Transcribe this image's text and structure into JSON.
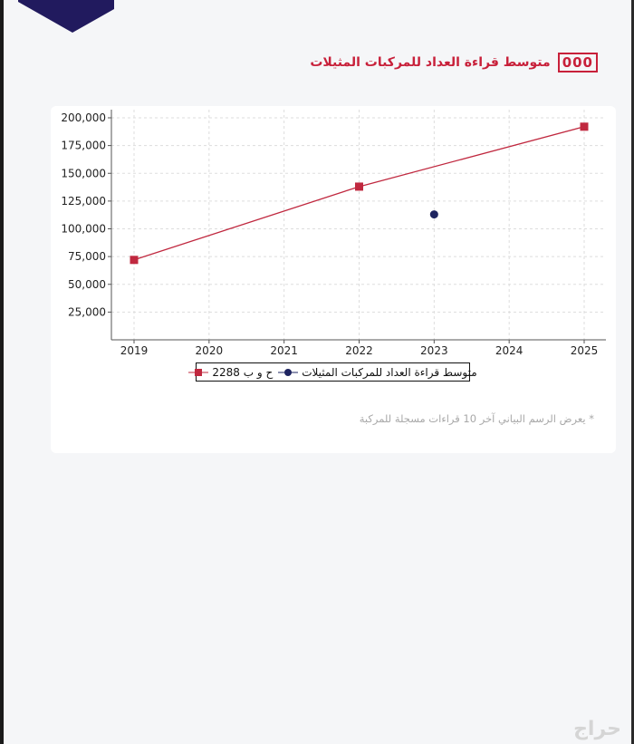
{
  "header": {
    "title": "متوسط قراءة العداد للمركبات المثيلات",
    "meter_icon": "odometer-icon",
    "meter_text": "000"
  },
  "colors": {
    "accent": "#c8203a",
    "series_vehicle": "#c0283f",
    "series_average": "#1e2460",
    "logo": "#211a5e"
  },
  "chart_data": {
    "type": "line",
    "x": [
      2019,
      2020,
      2021,
      2022,
      2023,
      2024,
      2025
    ],
    "xlim": [
      2019,
      2025
    ],
    "ylim": [
      0,
      200000
    ],
    "yticks": [
      25000,
      50000,
      75000,
      100000,
      125000,
      150000,
      175000,
      200000
    ],
    "ytick_labels": [
      "25,000",
      "50,000",
      "75,000",
      "100,000",
      "125,000",
      "150,000",
      "175,000",
      "200,000"
    ],
    "xtick_labels": [
      "2019",
      "2020",
      "2021",
      "2022",
      "2023",
      "2024",
      "2025"
    ],
    "grid": true,
    "legend_position": "bottom",
    "series": [
      {
        "name": "ح و ب 2288",
        "marker": "square",
        "color": "#c0283f",
        "points": [
          [
            2019,
            72000
          ],
          [
            2022,
            138000
          ],
          [
            2025,
            192000
          ]
        ]
      },
      {
        "name": "متوسط قراءة العداد للمركبات المثيلات",
        "marker": "circle",
        "color": "#1e2460",
        "points": [
          [
            2023,
            113000
          ]
        ]
      }
    ]
  },
  "note": "* يعرض الرسم البياني آخر 10 قراءات مسجلة للمركبة",
  "watermark": "حراج"
}
